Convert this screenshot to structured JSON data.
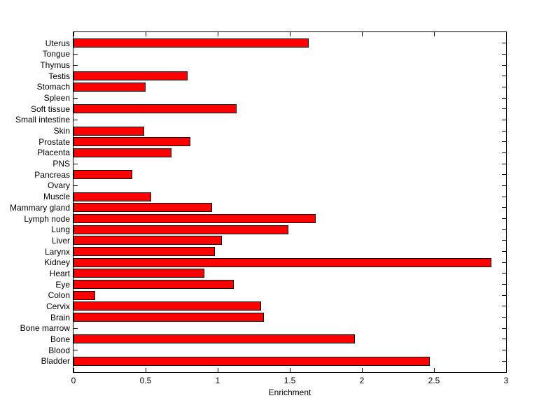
{
  "chart_data": {
    "type": "bar",
    "orientation": "horizontal",
    "title": "",
    "xlabel": "Enrichment",
    "ylabel": "",
    "xlim": [
      0,
      3
    ],
    "xticks": [
      0,
      0.5,
      1,
      1.5,
      2,
      2.5,
      3
    ],
    "xtick_labels": [
      "0",
      "0.5",
      "1",
      "1.5",
      "2",
      "2.5",
      "3"
    ],
    "grid": false,
    "legend": "none",
    "bar_color": "#ff0000",
    "bar_edge_color": "#000000",
    "axis_color": "#000000",
    "background_color": "#ffffff",
    "categories": [
      "Uterus",
      "Tongue",
      "Thymus",
      "Testis",
      "Stomach",
      "Spleen",
      "Soft tissue",
      "Small intestine",
      "Skin",
      "Prostate",
      "Placenta",
      "PNS",
      "Pancreas",
      "Ovary",
      "Muscle",
      "Mammary gland",
      "Lymph node",
      "Lung",
      "Liver",
      "Larynx",
      "Kidney",
      "Heart",
      "Eye",
      "Colon",
      "Cervix",
      "Brain",
      "Bone marrow",
      "Bone",
      "Blood",
      "Bladder"
    ],
    "values": [
      1.63,
      0,
      0,
      0.79,
      0.5,
      0,
      1.13,
      0,
      0.49,
      0.81,
      0.68,
      0,
      0.41,
      0,
      0.54,
      0.96,
      1.68,
      1.49,
      1.03,
      0.98,
      2.9,
      0.91,
      1.11,
      0.15,
      1.3,
      1.32,
      0,
      1.95,
      0,
      2.47
    ]
  }
}
